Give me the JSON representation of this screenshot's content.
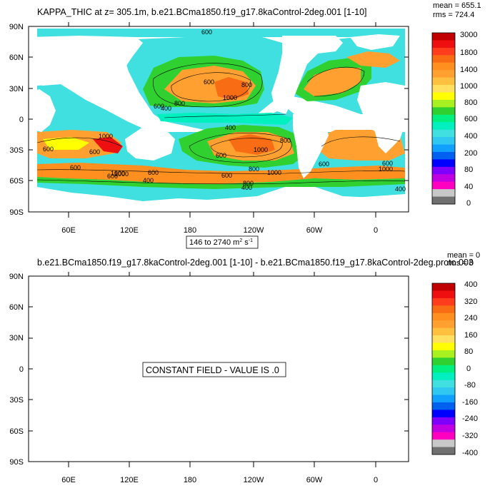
{
  "chart_data": [
    {
      "type": "heatmap",
      "title": "KAPPA_THIC at z= 305.1m, b.e21.BCma1850.f19_g17.8kaControl-2deg.001 [1-10]",
      "stats": {
        "mean": "mean = 655.1",
        "rms": "rms = 724.4"
      },
      "x_ticks": [
        "60E",
        "120E",
        "180",
        "120W",
        "60W",
        "0"
      ],
      "y_ticks": [
        "90N",
        "60N",
        "30N",
        "0",
        "30S",
        "60S",
        "90S"
      ],
      "range_label": {
        "prefix": "146 to 2740 m",
        "sup1": "2",
        "mid": " s",
        "sup2": "-1"
      },
      "colorbar_labels": [
        "3000",
        "1800",
        "1400",
        "1000",
        "800",
        "600",
        "400",
        "200",
        "80",
        "40",
        "0"
      ],
      "contour_labels": [
        "600",
        "600",
        "600",
        "800",
        "1000",
        "400",
        "800",
        "1000",
        "800",
        "600",
        "1000",
        "1000",
        "600",
        "600",
        "1000",
        "400",
        "600",
        "800",
        "1000",
        "800",
        "600",
        "400",
        "600",
        "400",
        "1000",
        "600",
        "400",
        "600",
        "600"
      ]
    },
    {
      "type": "heatmap",
      "title": "b.e21.BCma1850.f19_g17.8kaControl-2deg.001 [1-10] - b.e21.BCma1850.f19_g17.8kaControl-2deg.proto.003",
      "stats": {
        "mean": "mean = 0",
        "rms": "rms = 0"
      },
      "x_ticks": [
        "60E",
        "120E",
        "180",
        "120W",
        "60W",
        "0"
      ],
      "y_ticks": [
        "90N",
        "60N",
        "30N",
        "0",
        "30S",
        "60S",
        "90S"
      ],
      "annotation": "CONSTANT FIELD - VALUE IS .0",
      "colorbar_labels": [
        "400",
        "320",
        "240",
        "160",
        "80",
        "0",
        "-80",
        "-160",
        "-240",
        "-320",
        "-400"
      ]
    }
  ],
  "colorbar_colors": [
    "#c00000",
    "#ee1010",
    "#ff3c1c",
    "#f86c14",
    "#ff9020",
    "#ffa030",
    "#ffc040",
    "#ffe060",
    "#ffff00",
    "#a8f020",
    "#30d030",
    "#00f080",
    "#00f0c0",
    "#40e0e0",
    "#30c8f0",
    "#10a0ff",
    "#0060f0",
    "#0000ff",
    "#8000ff",
    "#c000e0",
    "#ff00c0",
    "#c8c8c8",
    "#707070"
  ]
}
